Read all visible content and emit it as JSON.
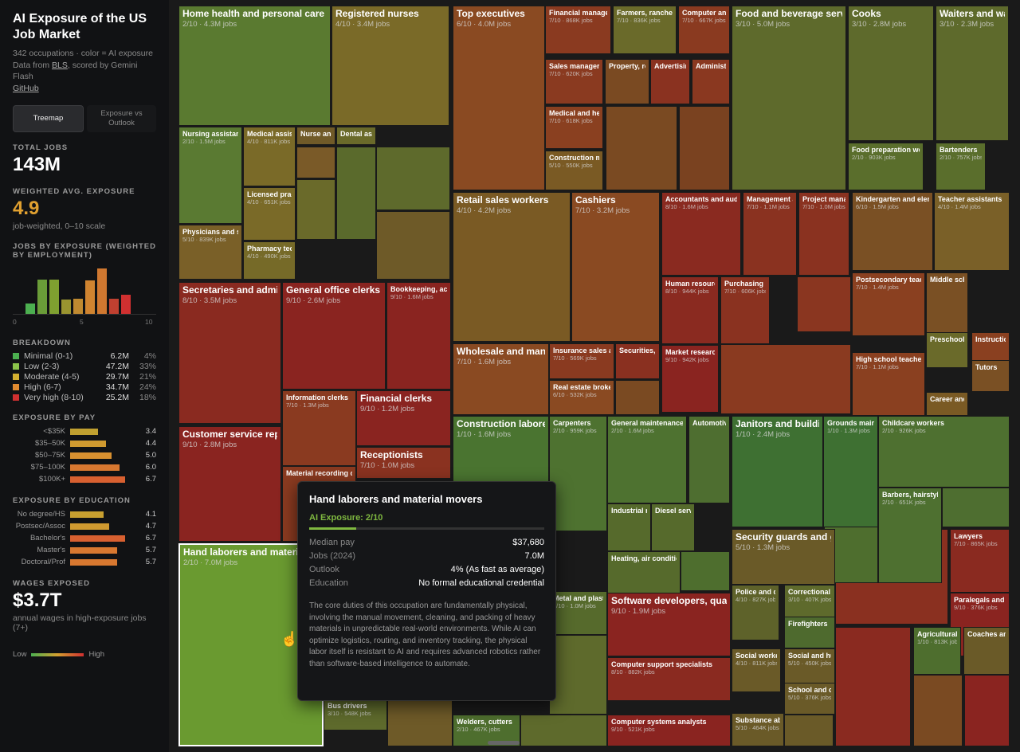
{
  "sidebar": {
    "title": "AI Exposure of the US Job Market",
    "subtitle": "342 occupations · color = AI exposure",
    "data_from_prefix": "Data from ",
    "data_from_link": "BLS",
    "data_from_suffix": ", scored by Gemini Flash",
    "github": "GitHub",
    "tabs": [
      {
        "label": "Treemap"
      },
      {
        "label": "Exposure vs Outlook"
      }
    ],
    "total_jobs_label": "TOTAL JOBS",
    "total_jobs": "143M",
    "weighted_label": "WEIGHTED AVG. EXPOSURE",
    "weighted_value": "4.9",
    "weighted_note": "job-weighted, 0–10 scale",
    "histogram_label": "JOBS BY EXPOSURE (WEIGHTED BY EMPLOYMENT)",
    "histogram": [
      {
        "v": 0.22,
        "c": "#4caf50"
      },
      {
        "v": 0.72,
        "c": "#6a9c38"
      },
      {
        "v": 0.72,
        "c": "#7fa030"
      },
      {
        "v": 0.3,
        "c": "#9a9430"
      },
      {
        "v": 0.32,
        "c": "#c08a30"
      },
      {
        "v": 0.7,
        "c": "#d08430"
      },
      {
        "v": 0.95,
        "c": "#d07830"
      },
      {
        "v": 0.32,
        "c": "#c04030"
      },
      {
        "v": 0.4,
        "c": "#d03030"
      }
    ],
    "histogram_ticks": [
      "0",
      "5",
      "10"
    ],
    "breakdown_label": "BREAKDOWN",
    "breakdown": [
      {
        "name": "Minimal (0-1)",
        "value": "6.2M",
        "pct": "4%",
        "color": "#4caf50"
      },
      {
        "name": "Low (2-3)",
        "value": "47.2M",
        "pct": "33%",
        "color": "#8bc34a"
      },
      {
        "name": "Moderate (4-5)",
        "value": "29.7M",
        "pct": "21%",
        "color": "#d4b030"
      },
      {
        "name": "High (6-7)",
        "value": "34.7M",
        "pct": "24%",
        "color": "#e08a30"
      },
      {
        "name": "Very high (8-10)",
        "value": "25.2M",
        "pct": "18%",
        "color": "#d03030"
      }
    ],
    "pay_label": "EXPOSURE BY PAY",
    "pay": [
      {
        "name": "<$35K",
        "value": "3.4",
        "score": 3.4,
        "color": "#c0a030"
      },
      {
        "name": "$35–50K",
        "value": "4.4",
        "score": 4.4,
        "color": "#d09a30"
      },
      {
        "name": "$50–75K",
        "value": "5.0",
        "score": 5.0,
        "color": "#d89030"
      },
      {
        "name": "$75–100K",
        "value": "6.0",
        "score": 6.0,
        "color": "#d87830"
      },
      {
        "name": "$100K+",
        "value": "6.7",
        "score": 6.7,
        "color": "#d86030"
      }
    ],
    "edu_label": "EXPOSURE BY EDUCATION",
    "education": [
      {
        "name": "No degree/HS",
        "value": "4.1",
        "score": 4.1,
        "color": "#c8a030"
      },
      {
        "name": "Postsec/Assoc",
        "value": "4.7",
        "score": 4.7,
        "color": "#d09a30"
      },
      {
        "name": "Bachelor's",
        "value": "6.7",
        "score": 6.7,
        "color": "#d86030"
      },
      {
        "name": "Master's",
        "value": "5.7",
        "score": 5.7,
        "color": "#d87830"
      },
      {
        "name": "Doctoral/Prof",
        "value": "5.7",
        "score": 5.7,
        "color": "#d87830"
      }
    ],
    "wages_label": "WAGES EXPOSED",
    "wages_value": "$3.7T",
    "wages_note": "annual wages in high-exposure jobs (7+)",
    "legend_low": "Low",
    "legend_high": "High"
  },
  "treemap": [
    {
      "name": "Home health and personal care aides",
      "detail": "2/10 · 4.3M jobs",
      "color": "#5a7a30"
    },
    {
      "name": "Registered nurses",
      "detail": "4/10 · 3.4M jobs",
      "color": "#7a6a28"
    },
    {
      "name": "Nursing assistants",
      "detail": "2/10 · 1.5M jobs",
      "color": "#5a7a32"
    },
    {
      "name": "Medical assistants",
      "detail": "4/10 · 811K jobs",
      "color": "#7a6a28"
    },
    {
      "name": "Nurse anesthetists",
      "detail": "",
      "color": "#705a28"
    },
    {
      "name": "Dental assistants",
      "detail": "",
      "color": "#6a6a2a"
    },
    {
      "name": "Licensed practical nurses",
      "detail": "4/10 · 651K jobs",
      "color": "#7a6a28"
    },
    {
      "name": "Physicians and surgeons",
      "detail": "5/10 · 839K jobs",
      "color": "#7a6028"
    },
    {
      "name": "Pharmacy technicians",
      "detail": "4/10 · 490K jobs",
      "color": "#766a28"
    },
    {
      "name": "Top executives",
      "detail": "6/10 · 4.0M jobs",
      "color": "#8a4a22"
    },
    {
      "name": "Financial managers",
      "detail": "7/10 · 868K jobs",
      "color": "#8a3a20"
    },
    {
      "name": "Farmers, ranchers",
      "detail": "7/10 · 836K jobs",
      "color": "#6a6a2a"
    },
    {
      "name": "Computer and information systems managers",
      "detail": "7/10 · 667K jobs",
      "color": "#8a3a20"
    },
    {
      "name": "Sales managers",
      "detail": "7/10 · 620K jobs",
      "color": "#8a3a20"
    },
    {
      "name": "Property, real estate managers",
      "detail": "",
      "color": "#7a4a22"
    },
    {
      "name": "Advertising managers",
      "detail": "",
      "color": "#8a3220"
    },
    {
      "name": "Administrative services managers",
      "detail": "",
      "color": "#8a3820"
    },
    {
      "name": "Medical and health services managers",
      "detail": "7/10 · 618K jobs",
      "color": "#8a4020"
    },
    {
      "name": "Construction managers",
      "detail": "5/10 · 550K jobs",
      "color": "#7a5a24"
    },
    {
      "name": "Food and beverage serving workers",
      "detail": "3/10 · 5.0M jobs",
      "color": "#5e6a2c"
    },
    {
      "name": "Cooks",
      "detail": "3/10 · 2.8M jobs",
      "color": "#5e6a2c"
    },
    {
      "name": "Waiters and waitresses",
      "detail": "3/10 · 2.3M jobs",
      "color": "#5e6a2c"
    },
    {
      "name": "Food preparation workers",
      "detail": "2/10 · 903K jobs",
      "color": "#5a6e2c"
    },
    {
      "name": "Bartenders",
      "detail": "2/10 · 757K jobs",
      "color": "#5a6e2c"
    },
    {
      "name": "Retail sales workers",
      "detail": "4/10 · 4.2M jobs",
      "color": "#7a5a24"
    },
    {
      "name": "Cashiers",
      "detail": "7/10 · 3.2M jobs",
      "color": "#8a4a22"
    },
    {
      "name": "Accountants and auditors",
      "detail": "8/10 · 1.6M jobs",
      "color": "#8a2a20"
    },
    {
      "name": "Management analysts",
      "detail": "7/10 · 1.1M jobs",
      "color": "#8a3220"
    },
    {
      "name": "Project management specialists",
      "detail": "7/10 · 1.0M jobs",
      "color": "#8a3220"
    },
    {
      "name": "Human resources specialists",
      "detail": "8/10 · 944K jobs",
      "color": "#8a2a20"
    },
    {
      "name": "Purchasing managers",
      "detail": "7/10 · 606K jobs",
      "color": "#8a3220"
    },
    {
      "name": "Market research analysts",
      "detail": "9/10 · 942K jobs",
      "color": "#8a2420"
    },
    {
      "name": "Wholesale and manufacturing sales representatives",
      "detail": "7/10 · 1.6M jobs",
      "color": "#8a4a22"
    },
    {
      "name": "Insurance sales agents",
      "detail": "7/10 · 569K jobs",
      "color": "#8a3a20"
    },
    {
      "name": "Securities, commodities agents",
      "detail": "",
      "color": "#8a3020"
    },
    {
      "name": "Real estate brokers",
      "detail": "6/10 · 532K jobs",
      "color": "#8a4a22"
    },
    {
      "name": "Kindergarten and elementary teachers",
      "detail": "6/10 · 1.5M jobs",
      "color": "#7a5024"
    },
    {
      "name": "Teacher assistants",
      "detail": "4/10 · 1.4M jobs",
      "color": "#7a6028"
    },
    {
      "name": "Postsecondary teachers",
      "detail": "7/10 · 1.4M jobs",
      "color": "#8a4020"
    },
    {
      "name": "Middle school teachers",
      "detail": "",
      "color": "#7a5024"
    },
    {
      "name": "Preschool teachers",
      "detail": "",
      "color": "#6a6a2a"
    },
    {
      "name": "Instructional coordinators",
      "detail": "",
      "color": "#8a4020"
    },
    {
      "name": "Tutors",
      "detail": "",
      "color": "#7a5024"
    },
    {
      "name": "High school teachers",
      "detail": "7/10 · 1.1M jobs",
      "color": "#8a4020"
    },
    {
      "name": "Career and technical education teachers",
      "detail": "",
      "color": "#7a5a24"
    },
    {
      "name": "Secretaries and administrative assistants",
      "detail": "8/10 · 3.5M jobs",
      "color": "#8a2a20"
    },
    {
      "name": "General office clerks",
      "detail": "9/10 · 2.6M jobs",
      "color": "#8a2420"
    },
    {
      "name": "Bookkeeping, accounting clerks",
      "detail": "9/10 · 1.6M jobs",
      "color": "#8a2420"
    },
    {
      "name": "Information clerks",
      "detail": "7/10 · 1.3M jobs",
      "color": "#8a3a20"
    },
    {
      "name": "Financial clerks",
      "detail": "9/10 · 1.2M jobs",
      "color": "#8a2420"
    },
    {
      "name": "Receptionists",
      "detail": "7/10 · 1.0M jobs",
      "color": "#8a3220"
    },
    {
      "name": "Customer service representatives",
      "detail": "9/10 · 2.8M jobs",
      "color": "#8a2420"
    },
    {
      "name": "Material recording clerks",
      "detail": "",
      "color": "#8a3a20"
    },
    {
      "name": "Hand laborers and material movers",
      "detail": "2/10 · 7.0M jobs",
      "color": "#6a9a30"
    },
    {
      "name": "Construction laborers",
      "detail": "1/10 · 1.6M jobs",
      "color": "#4a7430"
    },
    {
      "name": "Carpenters",
      "detail": "2/10 · 959K jobs",
      "color": "#4e7230"
    },
    {
      "name": "General maintenance workers",
      "detail": "2/10 · 1.6M jobs",
      "color": "#4e7230"
    },
    {
      "name": "Automotive technicians",
      "detail": "",
      "color": "#4e6e30"
    },
    {
      "name": "Industrial machinery mechanics",
      "detail": "",
      "color": "#566a2c"
    },
    {
      "name": "Diesel service technicians",
      "detail": "",
      "color": "#566a2c"
    },
    {
      "name": "Heating, air conditioning mechanics",
      "detail": "",
      "color": "#566a2c"
    },
    {
      "name": "Janitors and building cleaners",
      "detail": "1/10 · 2.4M jobs",
      "color": "#3e7032"
    },
    {
      "name": "Grounds maintenance workers",
      "detail": "1/10 · 1.3M jobs",
      "color": "#3e7032"
    },
    {
      "name": "Childcare workers",
      "detail": "2/10 · 926K jobs",
      "color": "#4e7030"
    },
    {
      "name": "Barbers, hairstylists",
      "detail": "2/10 · 651K jobs",
      "color": "#4e7030"
    },
    {
      "name": "Security guards and gambling surveillance officers",
      "detail": "5/10 · 1.3M jobs",
      "color": "#6a5a28"
    },
    {
      "name": "Police and detectives",
      "detail": "4/10 · 827K jobs",
      "color": "#5e622a"
    },
    {
      "name": "Correctional officers",
      "detail": "3/10 · 407K jobs",
      "color": "#5e6a2c"
    },
    {
      "name": "Firefighters",
      "detail": "",
      "color": "#4e6a2e"
    },
    {
      "name": "Lawyers",
      "detail": "7/10 · 865K jobs",
      "color": "#8a2a20"
    },
    {
      "name": "Paralegals and legal assistants",
      "detail": "9/10 · 376K jobs",
      "color": "#8a2420"
    },
    {
      "name": "Social workers",
      "detail": "4/10 · 811K jobs",
      "color": "#6a5a28"
    },
    {
      "name": "Social and human service assistants",
      "detail": "5/10 · 450K jobs",
      "color": "#6a5a28"
    },
    {
      "name": "School and career counselors",
      "detail": "5/10 · 376K jobs",
      "color": "#6a5a28"
    },
    {
      "name": "Substance abuse counselors",
      "detail": "5/10 · 464K jobs",
      "color": "#6a5a28"
    },
    {
      "name": "Agricultural workers",
      "detail": "1/10 · 813K jobs",
      "color": "#4e6e2e"
    },
    {
      "name": "Coaches and scouts",
      "detail": "",
      "color": "#6a5a28"
    },
    {
      "name": "Software developers, quality assurance analysts",
      "detail": "9/10 · 1.9M jobs",
      "color": "#8a2420"
    },
    {
      "name": "Computer support specialists",
      "detail": "8/10 · 882K jobs",
      "color": "#8a2a20"
    },
    {
      "name": "Computer systems analysts",
      "detail": "9/10 · 521K jobs",
      "color": "#8a2420"
    },
    {
      "name": "Metal and plastic machine workers",
      "detail": "3/10 · 1.0M jobs",
      "color": "#566a2c"
    },
    {
      "name": "Bus drivers",
      "detail": "3/10 · 548K jobs",
      "color": "#5e6a2c"
    },
    {
      "name": "Welders, cutters",
      "detail": "2/10 · 467K jobs",
      "color": "#4e6e2e"
    }
  ],
  "tooltip": {
    "title": "Hand laborers and material movers",
    "exposure": "AI Exposure: 2/10",
    "exposure_score": 2,
    "rows": [
      {
        "k": "Median pay",
        "v": "$37,680"
      },
      {
        "k": "Jobs (2024)",
        "v": "7.0M"
      },
      {
        "k": "Outlook",
        "v": "4% (As fast as average)"
      },
      {
        "k": "Education",
        "v": "No formal educational credential"
      }
    ],
    "description": "The core duties of this occupation are fundamentally physical, involving the manual movement, cleaning, and packing of heavy materials in unpredictable real-world environments. While AI can optimize logistics, routing, and inventory tracking, the physical labor itself is resistant to AI and requires advanced robotics rather than software-based intelligence to automate."
  }
}
